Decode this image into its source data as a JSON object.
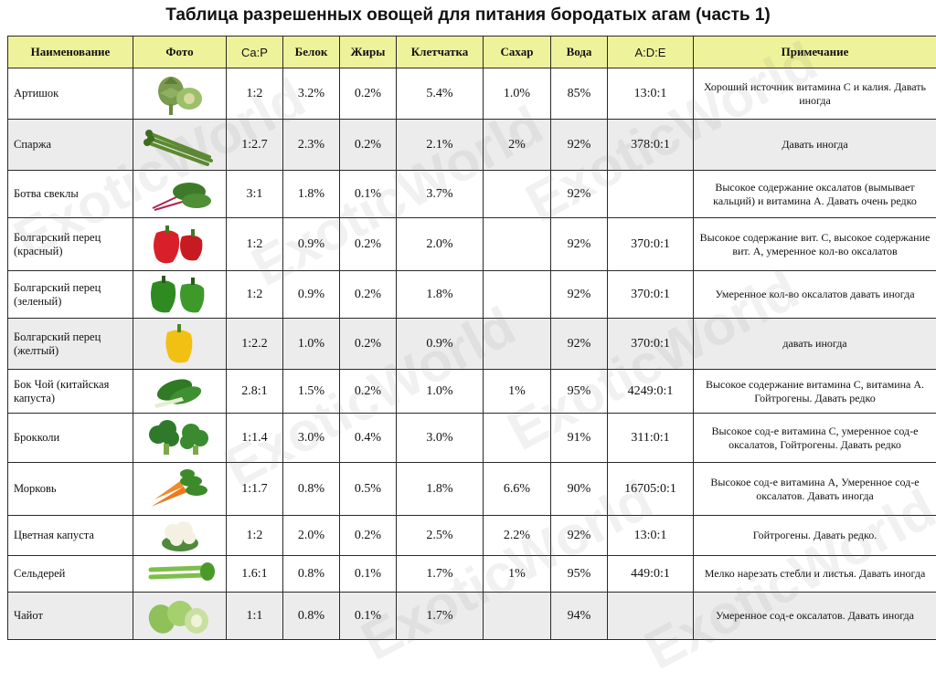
{
  "title": "Таблица разрешенных овощей для питания бородатых агам (часть 1)",
  "columns": [
    "Наименование",
    "Фото",
    "Ca:P",
    "Белок",
    "Жиры",
    "Клетчатка",
    "Сахар",
    "Вода",
    "A:D:E",
    "Примечание"
  ],
  "watermark": "ExoticWorld",
  "rows": [
    {
      "name": "Артишок",
      "photo": "artichoke-image",
      "cap": "1:2",
      "protein": "3.2%",
      "fat": "0.2%",
      "fiber": "5.4%",
      "sugar": "1.0%",
      "water": "85%",
      "ade": "13:0:1",
      "note": "Хороший источник витамина С и калия. Давать иногда"
    },
    {
      "name": "Спаржа",
      "photo": "asparagus-image",
      "cap": "1:2.7",
      "protein": "2.3%",
      "fat": "0.2%",
      "fiber": "2.1%",
      "sugar": "2%",
      "water": "92%",
      "ade": "378:0:1",
      "note": "Давать иногда"
    },
    {
      "name": "Ботва свеклы",
      "photo": "beet-greens-image",
      "cap": "3:1",
      "protein": "1.8%",
      "fat": "0.1%",
      "fiber": "3.7%",
      "sugar": "",
      "water": "92%",
      "ade": "",
      "note": "Высокое содержание оксалатов (вымывает кальций) и витамина А. Давать очень редко"
    },
    {
      "name": "Болгарский перец (красный)",
      "photo": "red-pepper-image",
      "cap": "1:2",
      "protein": "0.9%",
      "fat": "0.2%",
      "fiber": "2.0%",
      "sugar": "",
      "water": "92%",
      "ade": "370:0:1",
      "note": "Высокое содержание вит. С, высокое содержание вит. А, умеренное кол-во оксалатов"
    },
    {
      "name": "Болгарский перец (зеленый)",
      "photo": "green-pepper-image",
      "cap": "1:2",
      "protein": "0.9%",
      "fat": "0.2%",
      "fiber": "1.8%",
      "sugar": "",
      "water": "92%",
      "ade": "370:0:1",
      "note": "Умеренное кол-во оксалатов давать иногда"
    },
    {
      "name": "Болгарский перец (желтый)",
      "photo": "yellow-pepper-image",
      "cap": "1:2.2",
      "protein": "1.0%",
      "fat": "0.2%",
      "fiber": "0.9%",
      "sugar": "",
      "water": "92%",
      "ade": "370:0:1",
      "note": "давать иногда"
    },
    {
      "name": "Бок Чой (китайская капуста)",
      "photo": "bok-choy-image",
      "cap": "2.8:1",
      "protein": "1.5%",
      "fat": "0.2%",
      "fiber": "1.0%",
      "sugar": "1%",
      "water": "95%",
      "ade": "4249:0:1",
      "note": "Высокое содержание витамина С, витамина А. Гойтрогены. Давать редко"
    },
    {
      "name": "Брокколи",
      "photo": "broccoli-image",
      "cap": "1:1.4",
      "protein": "3.0%",
      "fat": "0.4%",
      "fiber": "3.0%",
      "sugar": "",
      "water": "91%",
      "ade": "311:0:1",
      "note": "Высокое сод-е витамина С, умеренное сод-е оксалатов, Гойтрогены. Давать редко"
    },
    {
      "name": "Морковь",
      "photo": "carrot-image",
      "cap": "1:1.7",
      "protein": "0.8%",
      "fat": "0.5%",
      "fiber": "1.8%",
      "sugar": "6.6%",
      "water": "90%",
      "ade": "16705:0:1",
      "note": "Высокое сод-е витамина  А, Умеренное сод-е оксалатов. Давать иногда"
    },
    {
      "name": "Цветная капуста",
      "photo": "cauliflower-image",
      "cap": "1:2",
      "protein": "2.0%",
      "fat": "0.2%",
      "fiber": "2.5%",
      "sugar": "2.2%",
      "water": "92%",
      "ade": "13:0:1",
      "note": "Гойтрогены. Давать редко."
    },
    {
      "name": "Сельдерей",
      "photo": "celery-image",
      "cap": "1.6:1",
      "protein": "0.8%",
      "fat": "0.1%",
      "fiber": "1.7%",
      "sugar": "1%",
      "water": "95%",
      "ade": "449:0:1",
      "note": "Мелко нарезать стебли и листья. Давать иногда"
    },
    {
      "name": "Чайот",
      "photo": "chayote-image",
      "cap": "1:1",
      "protein": "0.8%",
      "fat": "0.1%",
      "fiber": "1.7%",
      "sugar": "",
      "water": "94%",
      "ade": "",
      "note": "Умеренное сод-е оксалатов. Давать иногда"
    }
  ]
}
